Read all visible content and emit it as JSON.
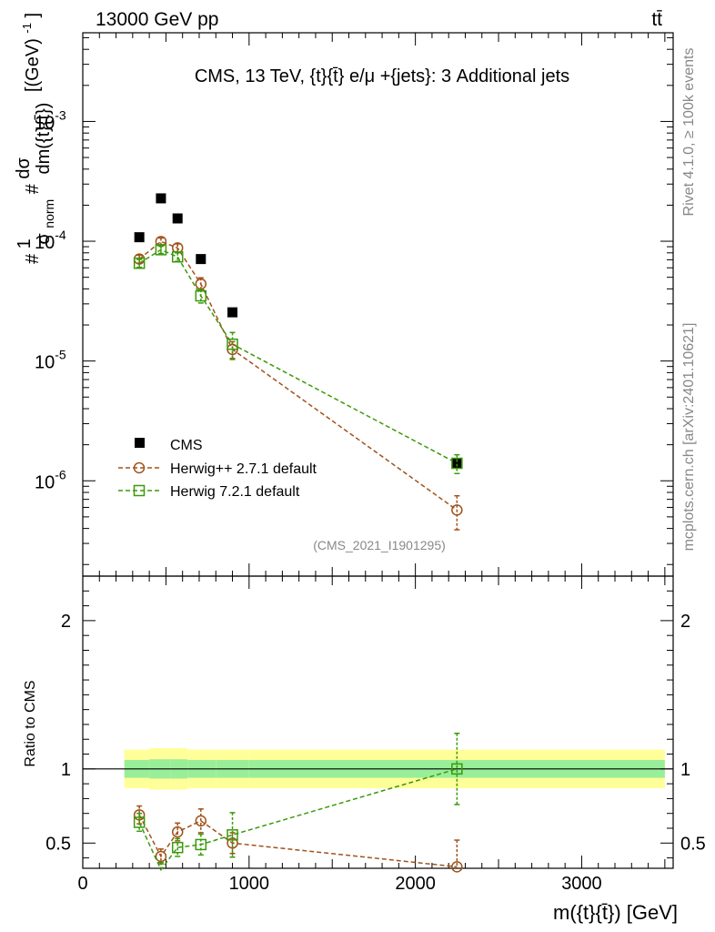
{
  "header": {
    "energy_label": "13000 GeV pp",
    "process_label": "tt̄"
  },
  "side_labels": {
    "rivet": "Rivet 4.1.0, ≥ 100k events",
    "mcplots": "mcplots.cern.ch [arXiv:2401.10621]"
  },
  "chart_data": {
    "type": "line",
    "title": "CMS, 13 TeV, {t}{t̄} e/μ +{jets}: 3 Additional jets",
    "watermark": "(CMS_2021_I1901295)",
    "xlabel": "m({t}{t̄}) [GeV]",
    "ylabel": "#1/σ_norm #dσ/dm({t}{t̄}) [(GeV)^-1]",
    "ylabel_parts": {
      "hash1": "#",
      "one": "1",
      "sigma": "σ",
      "norm": "norm",
      "hash2": "#",
      "dsigma": "dσ",
      "dm": "dm({t}{t̄})",
      "unit": "[(GeV)",
      "unit_exp": "-1",
      "unit_close": "]"
    },
    "xlim": [
      0,
      3550
    ],
    "ylim_log": [
      1.6e-07,
      0.0055
    ],
    "x_ticks": [
      0,
      1000,
      2000,
      3000
    ],
    "x_tick_labels": [
      "0",
      "1000",
      "2000",
      "3000"
    ],
    "y_tick_labels": [
      {
        "value": 0.001,
        "mant": "10",
        "exp": "-3"
      },
      {
        "value": 0.0001,
        "mant": "10",
        "exp": "-4"
      },
      {
        "value": 1e-05,
        "mant": "10",
        "exp": "-5"
      },
      {
        "value": 1e-06,
        "mant": "10",
        "exp": "-6"
      }
    ],
    "bin_edges": [
      250,
      400,
      530,
      630,
      800,
      1000,
      3500
    ],
    "x": [
      340,
      470,
      570,
      710,
      900,
      2250
    ],
    "series": [
      {
        "name": "CMS",
        "color": "#000000",
        "marker": "square-filled",
        "values": [
          0.000108,
          0.000228,
          0.000155,
          7.1e-05,
          2.55e-05,
          1.4e-06
        ]
      },
      {
        "name": "Herwig++ 2.7.1 default",
        "color": "#a0521a",
        "marker": "circle-open",
        "values": [
          7.1e-05,
          9.95e-05,
          8.8e-05,
          4.4e-05,
          1.25e-05,
          5.7e-07
        ],
        "err_low": [
          5.5e-06,
          7e-06,
          7e-06,
          5.5e-06,
          2e-06,
          1.8e-07
        ],
        "err_high": [
          5.5e-06,
          7e-06,
          7e-06,
          5.5e-06,
          2e-06,
          1.8e-07
        ]
      },
      {
        "name": "Herwig 7.2.1 default",
        "color": "#3a9a0a",
        "marker": "square-open",
        "values": [
          6.55e-05,
          8.5e-05,
          7.4e-05,
          3.5e-05,
          1.38e-05,
          1.4e-06
        ],
        "err_low": [
          5e-06,
          6e-06,
          6e-06,
          4.5e-06,
          3.5e-06,
          2.5e-07
        ],
        "err_high": [
          5e-06,
          6e-06,
          6e-06,
          4.5e-06,
          3.5e-06,
          2.5e-07
        ]
      }
    ],
    "ratio": {
      "ylabel": "Ratio to CMS",
      "ylim": [
        0.33,
        2.3
      ],
      "y_tick_labels": [
        "0.5",
        "1",
        "2"
      ],
      "y_ticks": [
        0.5,
        1,
        2
      ],
      "band_inner": [
        0.06,
        0.065,
        0.065,
        0.06,
        0.06,
        0.06
      ],
      "band_outer": [
        0.13,
        0.14,
        0.14,
        0.13,
        0.13,
        0.13
      ],
      "series": [
        {
          "name": "Herwig++ 2.7.1 default",
          "color": "#a0521a",
          "marker": "circle-open",
          "values": [
            0.69,
            0.41,
            0.575,
            0.65,
            0.5,
            0.34
          ],
          "err": [
            0.06,
            0.05,
            0.06,
            0.08,
            0.07,
            0.18
          ]
        },
        {
          "name": "Herwig 7.2.1 default",
          "color": "#3a9a0a",
          "marker": "square-open",
          "values": [
            0.64,
            0.32,
            0.47,
            0.49,
            0.555,
            1.0
          ],
          "err": [
            0.06,
            0.05,
            0.06,
            0.07,
            0.15,
            0.24
          ]
        }
      ]
    }
  }
}
